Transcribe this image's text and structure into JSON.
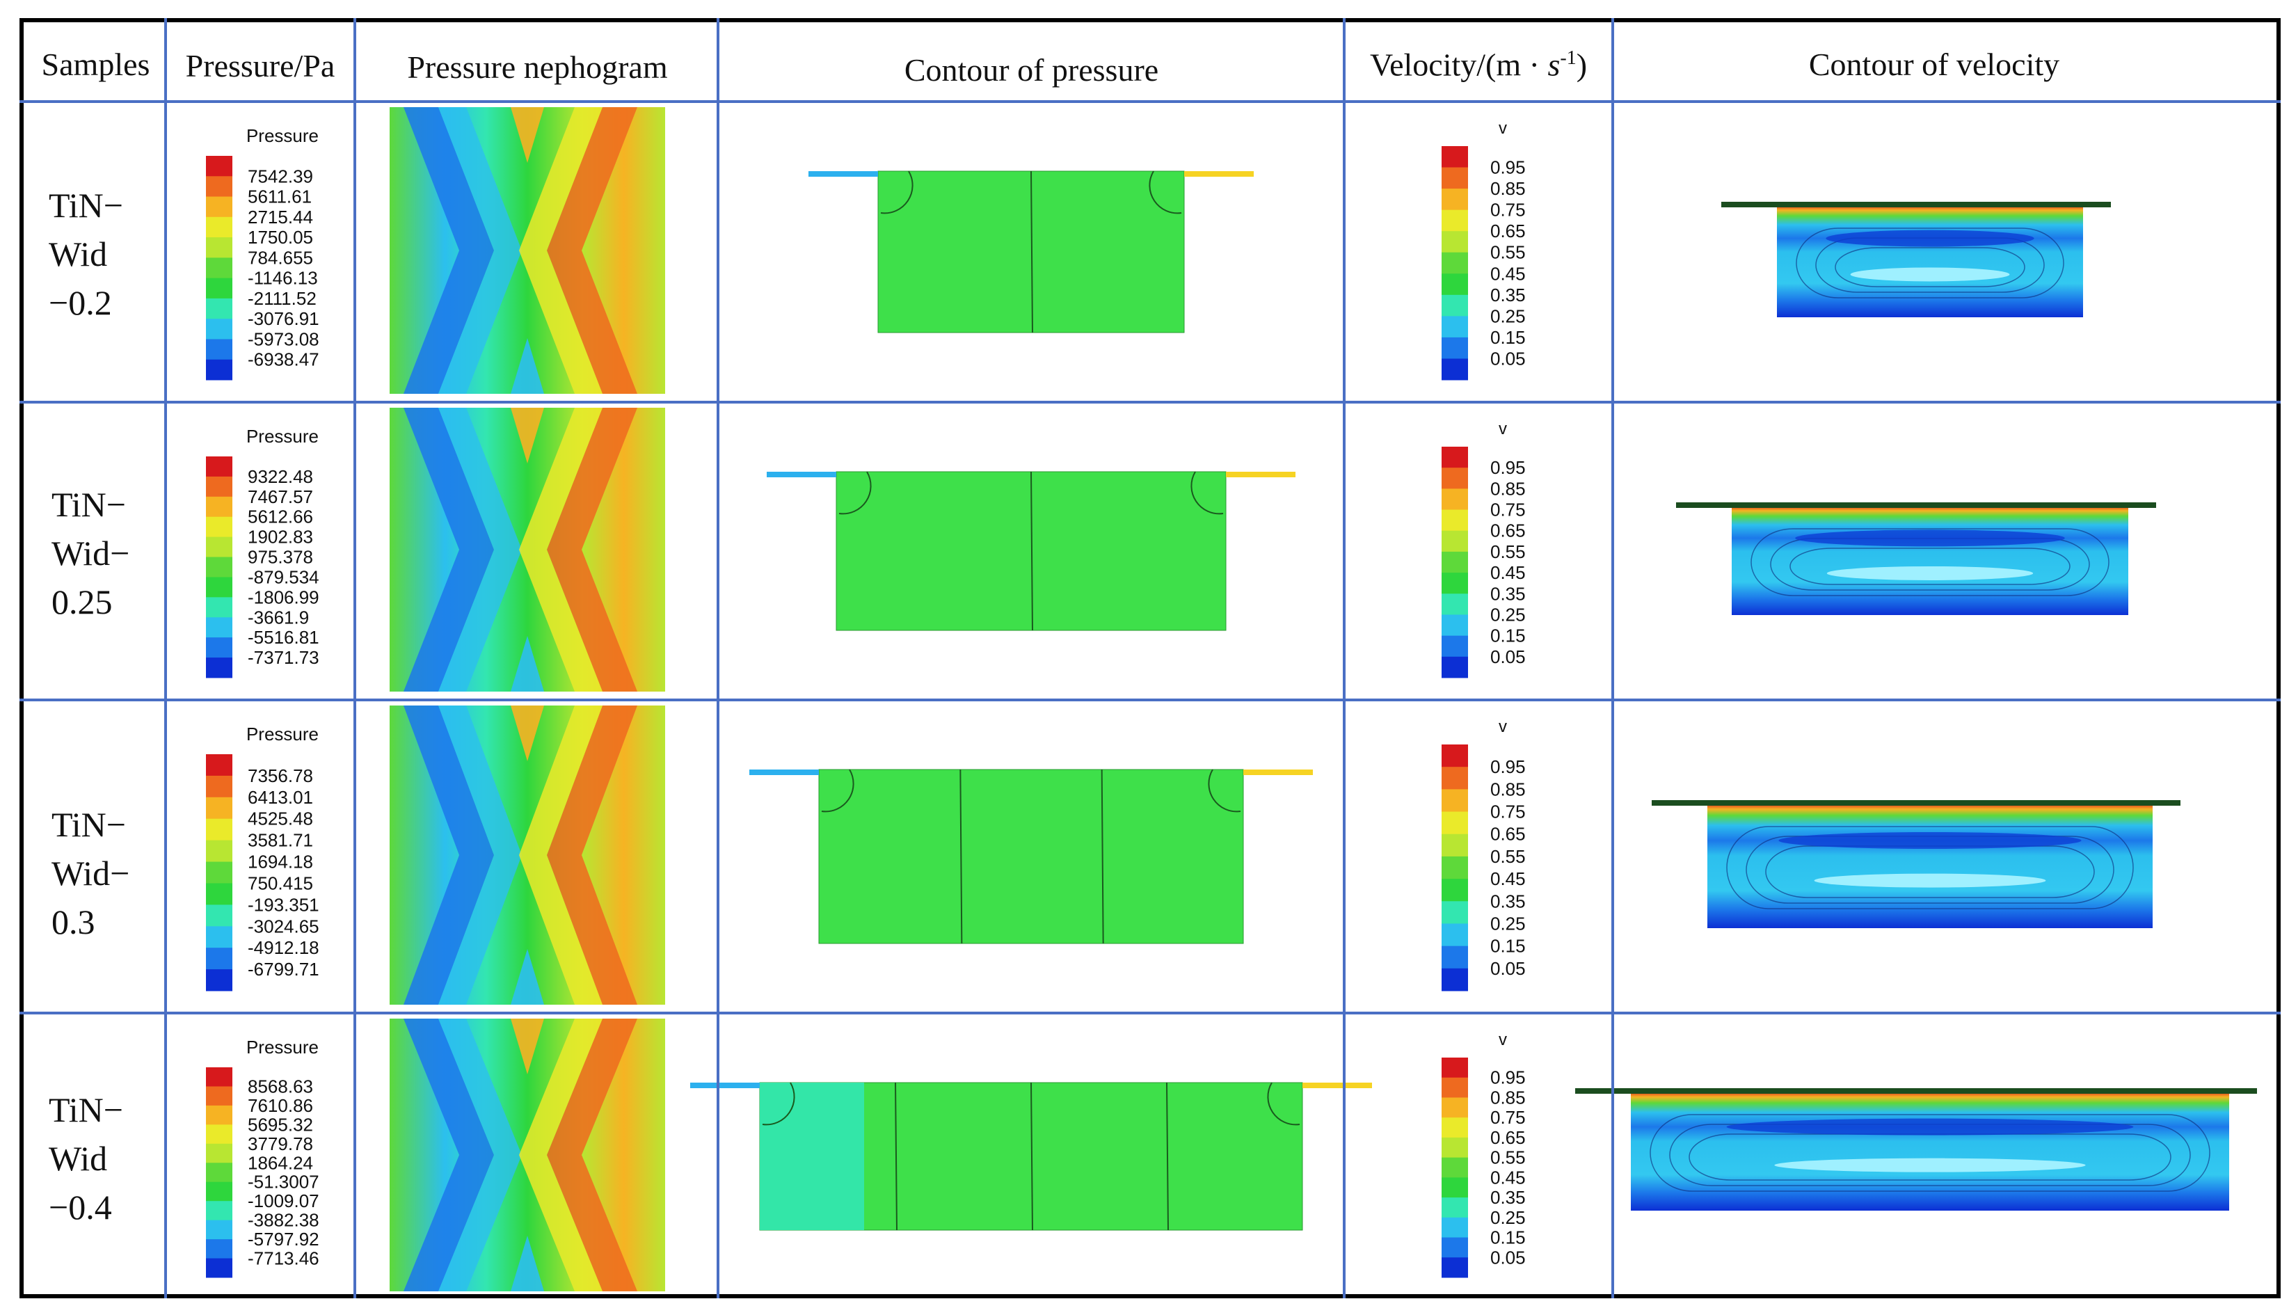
{
  "headers": {
    "samples": "Samples",
    "pressure_pa": "Pressure/Pa",
    "nephogram": "Pressure nephogram",
    "contour_pressure": "Contour of pressure",
    "velocity_prefix": "Velocity/(m · ",
    "velocity_s": "s",
    "velocity_exp": "-1",
    "velocity_suffix": ")",
    "contour_velocity": "Contour of velocity"
  },
  "legend_titles": {
    "pressure": "Pressure",
    "velocity": "v"
  },
  "legend_colors": [
    "#d7191c",
    "#ee6a1f",
    "#f6b323",
    "#eaea2a",
    "#b8e632",
    "#5ed93a",
    "#2ed63d",
    "#33e6b0",
    "#2cbfee",
    "#1c78ea",
    "#0c2fd4"
  ],
  "velocity_labels": [
    "0.95",
    "0.85",
    "0.75",
    "0.65",
    "0.55",
    "0.45",
    "0.35",
    "0.25",
    "0.15",
    "0.05"
  ],
  "rows": [
    {
      "sample": "TiN−\nWid\n−0.2",
      "pressure_labels": [
        "7542.39",
        "5611.61",
        "2715.44",
        "1750.05",
        "784.655",
        "-1146.13",
        "-2111.52",
        "-3076.91",
        "-5973.08",
        "-6938.47"
      ]
    },
    {
      "sample": "TiN−\nWid−\n0.25",
      "pressure_labels": [
        "9322.48",
        "7467.57",
        "5612.66",
        "1902.83",
        "975.378",
        "-879.534",
        "-1806.99",
        "-3661.9",
        "-5516.81",
        "-7371.73"
      ]
    },
    {
      "sample": "TiN−\nWid−\n0.3",
      "pressure_labels": [
        "7356.78",
        "6413.01",
        "4525.48",
        "3581.71",
        "1694.18",
        "750.415",
        "-193.351",
        "-3024.65",
        "-4912.18",
        "-6799.71"
      ]
    },
    {
      "sample": "TiN−\nWid\n−0.4",
      "pressure_labels": [
        "8568.63",
        "7610.86",
        "5695.32",
        "3779.78",
        "1864.24",
        "-51.3007",
        "-1009.07",
        "-3882.38",
        "-5797.92",
        "-7713.46"
      ]
    }
  ]
}
